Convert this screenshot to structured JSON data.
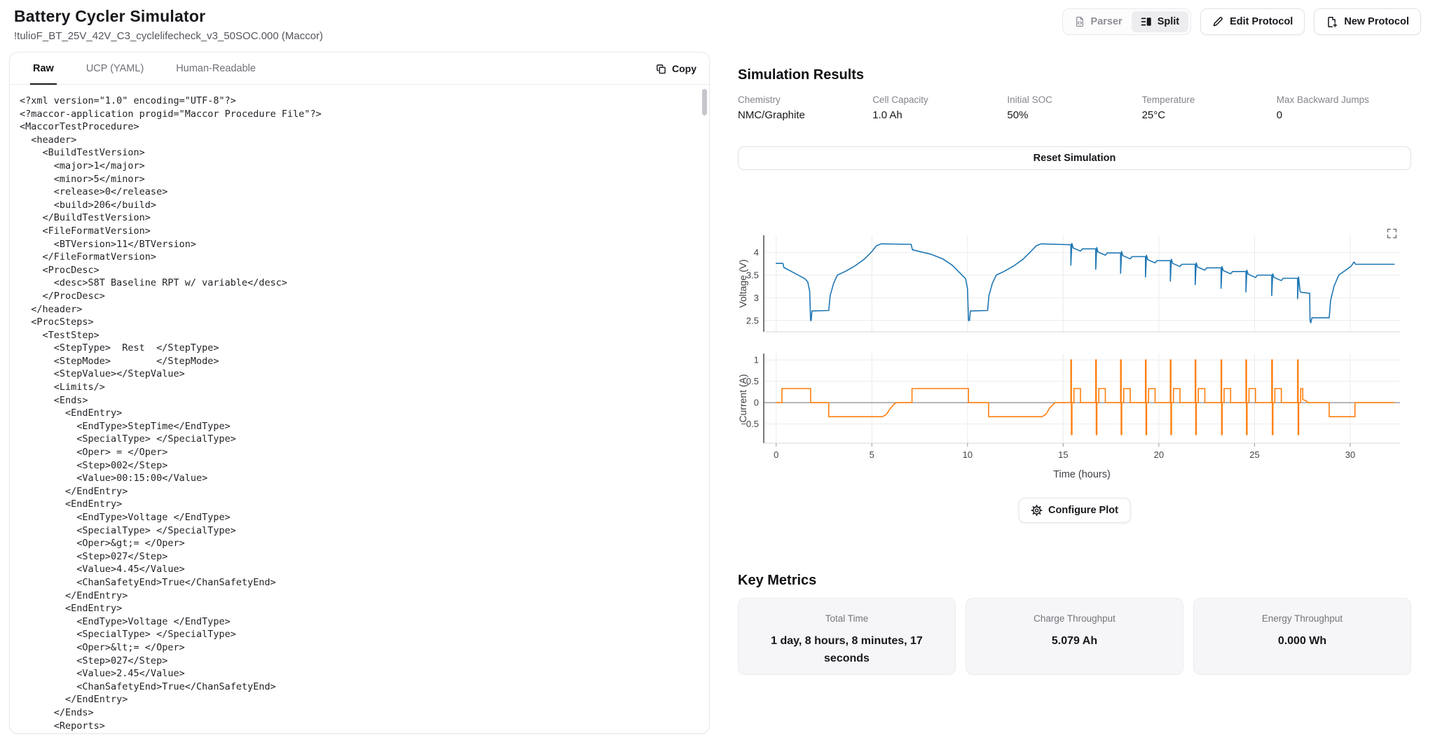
{
  "header": {
    "title": "Battery Cycler Simulator",
    "subtitle": "!tulioF_BT_25V_42V_C3_cyclelifecheck_v3_50SOC.000 (Maccor)",
    "view_toggle": {
      "parser_label": "Parser",
      "split_label": "Split"
    },
    "edit_protocol_label": "Edit Protocol",
    "new_protocol_label": "New Protocol"
  },
  "protocol_viewer": {
    "tabs": [
      {
        "label": "Raw"
      },
      {
        "label": "UCP (YAML)"
      },
      {
        "label": "Human-Readable"
      }
    ],
    "copy_label": "Copy",
    "code": "<?xml version=\"1.0\" encoding=\"UTF-8\"?>\n<?maccor-application progid=\"Maccor Procedure File\"?>\n<MaccorTestProcedure>\n  <header>\n    <BuildTestVersion>\n      <major>1</major>\n      <minor>5</minor>\n      <release>0</release>\n      <build>206</build>\n    </BuildTestVersion>\n    <FileFormatVersion>\n      <BTVersion>11</BTVersion>\n    </FileFormatVersion>\n    <ProcDesc>\n      <desc>S8T Baseline RPT w/ variable</desc>\n    </ProcDesc>\n  </header>\n  <ProcSteps>\n    <TestStep>\n      <StepType>  Rest  </StepType>\n      <StepMode>        </StepMode>\n      <StepValue></StepValue>\n      <Limits/>\n      <Ends>\n        <EndEntry>\n          <EndType>StepTime</EndType>\n          <SpecialType> </SpecialType>\n          <Oper> = </Oper>\n          <Step>002</Step>\n          <Value>00:15:00</Value>\n        </EndEntry>\n        <EndEntry>\n          <EndType>Voltage </EndType>\n          <SpecialType> </SpecialType>\n          <Oper>&gt;= </Oper>\n          <Step>027</Step>\n          <Value>4.45</Value>\n          <ChanSafetyEnd>True</ChanSafetyEnd>\n        </EndEntry>\n        <EndEntry>\n          <EndType>Voltage </EndType>\n          <SpecialType> </SpecialType>\n          <Oper>&lt;= </Oper>\n          <Step>027</Step>\n          <Value>2.45</Value>\n          <ChanSafetyEnd>True</ChanSafetyEnd>\n        </EndEntry>\n      </Ends>\n      <Reports>\n        <ReportEntry>"
  },
  "simulation": {
    "title": "Simulation Results",
    "params": [
      {
        "label": "Chemistry",
        "value": "NMC/Graphite"
      },
      {
        "label": "Cell Capacity",
        "value": "1.0 Ah"
      },
      {
        "label": "Initial SOC",
        "value": "50%"
      },
      {
        "label": "Temperature",
        "value": "25°C"
      },
      {
        "label": "Max Backward Jumps",
        "value": "0"
      }
    ],
    "reset_label": "Reset Simulation",
    "configure_label": "Configure Plot"
  },
  "key_metrics": {
    "title": "Key Metrics",
    "cards": [
      {
        "label": "Total Time",
        "value": "1 day, 8 hours, 8 minutes, 17 seconds"
      },
      {
        "label": "Charge Throughput",
        "value": "5.079 Ah"
      },
      {
        "label": "Energy Throughput",
        "value": "0.000 Wh"
      }
    ]
  },
  "chart_data": [
    {
      "name": "voltage",
      "type": "line",
      "title": "",
      "xlabel": "",
      "ylabel": "Voltage (V)",
      "color": "#1f77b4",
      "grid": true,
      "legend": "none",
      "xlim": [
        -0.65,
        32.6
      ],
      "ylim": [
        2.25,
        4.38
      ],
      "yticks": [
        2.5,
        3,
        3.5,
        4
      ],
      "xticks": [
        0,
        5,
        10,
        15,
        20,
        25,
        30
      ],
      "show_xtick_labels": false,
      "zero_line": false,
      "points": [
        [
          0,
          3.76
        ],
        [
          0.35,
          3.76
        ],
        [
          0.4,
          3.67
        ],
        [
          0.8,
          3.58
        ],
        [
          1.2,
          3.49
        ],
        [
          1.5,
          3.42
        ],
        [
          1.65,
          3.35
        ],
        [
          1.75,
          3.15
        ],
        [
          1.8,
          2.5
        ],
        [
          1.83,
          2.5
        ],
        [
          1.87,
          2.71
        ],
        [
          2.75,
          2.72
        ],
        [
          2.82,
          3.05
        ],
        [
          3.0,
          3.32
        ],
        [
          3.2,
          3.5
        ],
        [
          3.6,
          3.58
        ],
        [
          4.1,
          3.7
        ],
        [
          4.6,
          3.85
        ],
        [
          5.0,
          4.02
        ],
        [
          5.25,
          4.15
        ],
        [
          5.5,
          4.19
        ],
        [
          7.05,
          4.18
        ],
        [
          7.12,
          4.06
        ],
        [
          7.5,
          4.02
        ],
        [
          8.1,
          3.96
        ],
        [
          8.7,
          3.86
        ],
        [
          9.2,
          3.72
        ],
        [
          9.6,
          3.55
        ],
        [
          9.9,
          3.42
        ],
        [
          10.0,
          3.2
        ],
        [
          10.05,
          2.5
        ],
        [
          10.1,
          2.5
        ],
        [
          10.15,
          2.71
        ],
        [
          11.05,
          2.72
        ],
        [
          11.12,
          3.05
        ],
        [
          11.3,
          3.32
        ],
        [
          11.5,
          3.5
        ],
        [
          11.9,
          3.58
        ],
        [
          12.4,
          3.7
        ],
        [
          12.9,
          3.85
        ],
        [
          13.3,
          4.02
        ],
        [
          13.6,
          4.15
        ],
        [
          13.85,
          4.19
        ],
        [
          15.4,
          4.17
        ],
        [
          15.4,
          3.72
        ],
        [
          15.45,
          4.2
        ],
        [
          15.52,
          4.1
        ],
        [
          15.9,
          4.03
        ],
        [
          16.0,
          4.08
        ],
        [
          16.7,
          4.08
        ],
        [
          16.7,
          3.63
        ],
        [
          16.75,
          4.11
        ],
        [
          16.82,
          4.01
        ],
        [
          17.2,
          3.94
        ],
        [
          17.3,
          3.99
        ],
        [
          18.0,
          3.99
        ],
        [
          18.0,
          3.54
        ],
        [
          18.05,
          4.02
        ],
        [
          18.12,
          3.93
        ],
        [
          18.5,
          3.86
        ],
        [
          18.6,
          3.91
        ],
        [
          19.3,
          3.91
        ],
        [
          19.3,
          3.46
        ],
        [
          19.35,
          3.94
        ],
        [
          19.42,
          3.84
        ],
        [
          19.8,
          3.77
        ],
        [
          19.9,
          3.82
        ],
        [
          20.6,
          3.82
        ],
        [
          20.6,
          3.37
        ],
        [
          20.65,
          3.85
        ],
        [
          20.72,
          3.76
        ],
        [
          21.1,
          3.69
        ],
        [
          21.2,
          3.74
        ],
        [
          21.9,
          3.74
        ],
        [
          21.9,
          3.29
        ],
        [
          21.95,
          3.77
        ],
        [
          22.02,
          3.68
        ],
        [
          22.4,
          3.61
        ],
        [
          22.5,
          3.66
        ],
        [
          23.25,
          3.66
        ],
        [
          23.25,
          3.21
        ],
        [
          23.3,
          3.69
        ],
        [
          23.37,
          3.6
        ],
        [
          23.75,
          3.53
        ],
        [
          23.85,
          3.58
        ],
        [
          24.55,
          3.58
        ],
        [
          24.55,
          3.13
        ],
        [
          24.6,
          3.61
        ],
        [
          24.67,
          3.52
        ],
        [
          25.05,
          3.45
        ],
        [
          25.15,
          3.5
        ],
        [
          25.9,
          3.5
        ],
        [
          25.9,
          3.05
        ],
        [
          25.95,
          3.53
        ],
        [
          26.02,
          3.45
        ],
        [
          26.4,
          3.38
        ],
        [
          26.5,
          3.43
        ],
        [
          27.25,
          3.43
        ],
        [
          27.25,
          2.98
        ],
        [
          27.3,
          3.46
        ],
        [
          27.38,
          3.14
        ],
        [
          27.45,
          3.12
        ],
        [
          27.88,
          3.1
        ],
        [
          27.9,
          2.5
        ],
        [
          27.94,
          2.45
        ],
        [
          28.0,
          2.56
        ],
        [
          28.9,
          2.56
        ],
        [
          28.98,
          2.95
        ],
        [
          29.15,
          3.25
        ],
        [
          29.4,
          3.5
        ],
        [
          29.8,
          3.62
        ],
        [
          30.05,
          3.7
        ],
        [
          30.2,
          3.79
        ],
        [
          30.28,
          3.74
        ],
        [
          32.3,
          3.74
        ]
      ]
    },
    {
      "name": "current",
      "type": "line",
      "title": "",
      "xlabel": "Time (hours)",
      "ylabel": "Current (A)",
      "color": "#ff7f0e",
      "grid": true,
      "legend": "none",
      "xlim": [
        -0.65,
        32.6
      ],
      "ylim": [
        -0.95,
        1.15
      ],
      "yticks": [
        -0.5,
        0,
        0.5,
        1
      ],
      "xticks": [
        0,
        5,
        10,
        15,
        20,
        25,
        30
      ],
      "show_xtick_labels": true,
      "zero_line": true,
      "points": [
        [
          0,
          0
        ],
        [
          0.3,
          0
        ],
        [
          0.3,
          0.33
        ],
        [
          1.8,
          0.33
        ],
        [
          1.8,
          0
        ],
        [
          2.75,
          0
        ],
        [
          2.75,
          -0.33
        ],
        [
          5.55,
          -0.33
        ],
        [
          5.75,
          -0.28
        ],
        [
          5.95,
          -0.15
        ],
        [
          6.15,
          -0.04
        ],
        [
          6.3,
          0
        ],
        [
          7.1,
          0
        ],
        [
          7.1,
          0.33
        ],
        [
          10.05,
          0.33
        ],
        [
          10.05,
          0
        ],
        [
          11.1,
          0
        ],
        [
          11.1,
          -0.33
        ],
        [
          13.9,
          -0.33
        ],
        [
          14.1,
          -0.27
        ],
        [
          14.3,
          -0.12
        ],
        [
          14.5,
          -0.03
        ],
        [
          14.6,
          0
        ],
        [
          15.4,
          0
        ],
        [
          15.4,
          1
        ],
        [
          15.43,
          1
        ],
        [
          15.43,
          -0.75
        ],
        [
          15.46,
          -0.75
        ],
        [
          15.46,
          0
        ],
        [
          15.56,
          0
        ],
        [
          15.56,
          0.33
        ],
        [
          15.9,
          0.33
        ],
        [
          15.9,
          0
        ],
        [
          16.7,
          0
        ],
        [
          16.7,
          1
        ],
        [
          16.73,
          1
        ],
        [
          16.73,
          -0.75
        ],
        [
          16.76,
          -0.75
        ],
        [
          16.76,
          0
        ],
        [
          16.86,
          0
        ],
        [
          16.86,
          0.33
        ],
        [
          17.2,
          0.33
        ],
        [
          17.2,
          0
        ],
        [
          18.0,
          0
        ],
        [
          18.0,
          1
        ],
        [
          18.03,
          1
        ],
        [
          18.03,
          -0.75
        ],
        [
          18.06,
          -0.75
        ],
        [
          18.06,
          0
        ],
        [
          18.16,
          0
        ],
        [
          18.16,
          0.33
        ],
        [
          18.5,
          0.33
        ],
        [
          18.5,
          0
        ],
        [
          19.3,
          0
        ],
        [
          19.3,
          1
        ],
        [
          19.33,
          1
        ],
        [
          19.33,
          -0.75
        ],
        [
          19.36,
          -0.75
        ],
        [
          19.36,
          0
        ],
        [
          19.46,
          0
        ],
        [
          19.46,
          0.33
        ],
        [
          19.8,
          0.33
        ],
        [
          19.8,
          0
        ],
        [
          20.6,
          0
        ],
        [
          20.6,
          1
        ],
        [
          20.63,
          1
        ],
        [
          20.63,
          -0.75
        ],
        [
          20.66,
          -0.75
        ],
        [
          20.66,
          0
        ],
        [
          20.76,
          0
        ],
        [
          20.76,
          0.33
        ],
        [
          21.1,
          0.33
        ],
        [
          21.1,
          0
        ],
        [
          21.9,
          0
        ],
        [
          21.9,
          1
        ],
        [
          21.93,
          1
        ],
        [
          21.93,
          -0.75
        ],
        [
          21.96,
          -0.75
        ],
        [
          21.96,
          0
        ],
        [
          22.06,
          0
        ],
        [
          22.06,
          0.33
        ],
        [
          22.4,
          0.33
        ],
        [
          22.4,
          0
        ],
        [
          23.25,
          0
        ],
        [
          23.25,
          1
        ],
        [
          23.28,
          1
        ],
        [
          23.28,
          -0.75
        ],
        [
          23.31,
          -0.75
        ],
        [
          23.31,
          0
        ],
        [
          23.41,
          0
        ],
        [
          23.41,
          0.33
        ],
        [
          23.75,
          0.33
        ],
        [
          23.75,
          0
        ],
        [
          24.55,
          0
        ],
        [
          24.55,
          1
        ],
        [
          24.58,
          1
        ],
        [
          24.58,
          -0.75
        ],
        [
          24.61,
          -0.75
        ],
        [
          24.61,
          0
        ],
        [
          24.71,
          0
        ],
        [
          24.71,
          0.33
        ],
        [
          25.05,
          0.33
        ],
        [
          25.05,
          0
        ],
        [
          25.9,
          0
        ],
        [
          25.9,
          1
        ],
        [
          25.93,
          1
        ],
        [
          25.93,
          -0.75
        ],
        [
          25.96,
          -0.75
        ],
        [
          25.96,
          0
        ],
        [
          26.06,
          0
        ],
        [
          26.06,
          0.33
        ],
        [
          26.4,
          0.33
        ],
        [
          26.4,
          0
        ],
        [
          27.25,
          0
        ],
        [
          27.25,
          1
        ],
        [
          27.28,
          1
        ],
        [
          27.28,
          -0.75
        ],
        [
          27.31,
          -0.75
        ],
        [
          27.31,
          0
        ],
        [
          27.41,
          0
        ],
        [
          27.41,
          0.33
        ],
        [
          27.52,
          0.33
        ],
        [
          27.52,
          0.07
        ],
        [
          27.72,
          0.04
        ],
        [
          27.78,
          0
        ],
        [
          28.9,
          0
        ],
        [
          28.9,
          -0.33
        ],
        [
          30.25,
          -0.33
        ],
        [
          30.25,
          0
        ],
        [
          32.3,
          0
        ]
      ]
    }
  ]
}
